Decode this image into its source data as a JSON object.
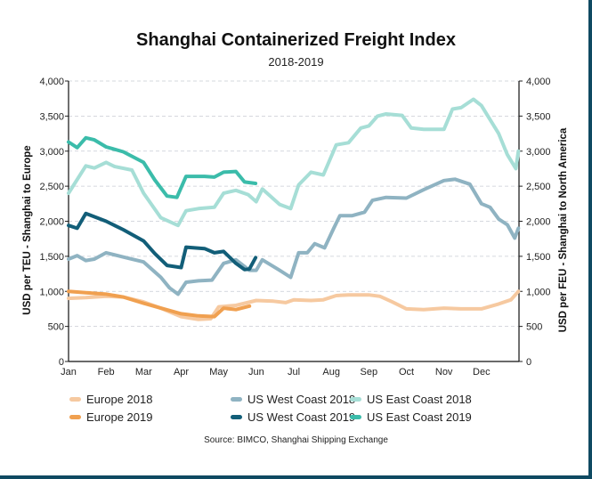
{
  "chart_data": {
    "type": "line",
    "title": "Shanghai Containerized Freight Index",
    "subtitle": "2018-2019",
    "ylabel_left": "USD per TEU - Shanghai to Europe",
    "ylabel_right": "USD per FEU - Shanghai to North America",
    "ylim": [
      0,
      4000
    ],
    "yticks_left": [
      "0",
      "500",
      "1,000",
      "1,500",
      "2,000",
      "2,500",
      "3,000",
      "3,500",
      "4,000"
    ],
    "yticks_right": [
      "0",
      "500",
      "1,000",
      "1,500",
      "2,000",
      "2,500",
      "3,000",
      "3,500",
      "4,000"
    ],
    "xticks": [
      "Jan",
      "Feb",
      "Mar",
      "Apr",
      "May",
      "Jun",
      "Jul",
      "Aug",
      "Sep",
      "Oct",
      "Nov",
      "Dec"
    ],
    "grid": "horizontal dashed",
    "legend_placement": "bottom",
    "source": "Source: BIMCO, Shanghai Shipping Exchange",
    "series": [
      {
        "name": "Europe 2018",
        "color": "#f6c9a0",
        "points": [
          [
            "01-01",
            900
          ],
          [
            "01-15",
            910
          ],
          [
            "02-01",
            930
          ],
          [
            "02-15",
            920
          ],
          [
            "03-01",
            850
          ],
          [
            "03-15",
            760
          ],
          [
            "04-01",
            640
          ],
          [
            "04-15",
            600
          ],
          [
            "04-25",
            610
          ],
          [
            "05-01",
            780
          ],
          [
            "05-15",
            800
          ],
          [
            "06-01",
            870
          ],
          [
            "06-15",
            860
          ],
          [
            "06-25",
            840
          ],
          [
            "07-01",
            880
          ],
          [
            "07-15",
            870
          ],
          [
            "07-25",
            880
          ],
          [
            "08-05",
            940
          ],
          [
            "08-15",
            950
          ],
          [
            "09-01",
            950
          ],
          [
            "09-10",
            930
          ],
          [
            "09-20",
            850
          ],
          [
            "10-01",
            750
          ],
          [
            "10-15",
            740
          ],
          [
            "11-01",
            760
          ],
          [
            "11-15",
            750
          ],
          [
            "12-01",
            750
          ],
          [
            "12-15",
            820
          ],
          [
            "12-25",
            880
          ],
          [
            "12-31",
            1000
          ]
        ]
      },
      {
        "name": "Europe 2019",
        "color": "#f0a050",
        "points": [
          [
            "01-01",
            1000
          ],
          [
            "01-15",
            980
          ],
          [
            "02-01",
            960
          ],
          [
            "02-15",
            920
          ],
          [
            "03-01",
            830
          ],
          [
            "03-15",
            760
          ],
          [
            "04-01",
            680
          ],
          [
            "04-15",
            650
          ],
          [
            "04-28",
            640
          ],
          [
            "05-05",
            760
          ],
          [
            "05-15",
            740
          ],
          [
            "05-26",
            790
          ]
        ]
      },
      {
        "name": "US West Coast 2018",
        "color": "#8fb3c2",
        "points": [
          [
            "01-01",
            1460
          ],
          [
            "01-08",
            1510
          ],
          [
            "01-15",
            1440
          ],
          [
            "01-22",
            1460
          ],
          [
            "02-01",
            1550
          ],
          [
            "02-15",
            1490
          ],
          [
            "03-01",
            1420
          ],
          [
            "03-15",
            1200
          ],
          [
            "03-22",
            1050
          ],
          [
            "03-29",
            960
          ],
          [
            "04-05",
            1130
          ],
          [
            "04-15",
            1150
          ],
          [
            "04-26",
            1160
          ],
          [
            "05-05",
            1400
          ],
          [
            "05-15",
            1450
          ],
          [
            "05-26",
            1300
          ],
          [
            "06-01",
            1300
          ],
          [
            "06-06",
            1450
          ],
          [
            "06-20",
            1300
          ],
          [
            "06-29",
            1200
          ],
          [
            "07-05",
            1550
          ],
          [
            "07-12",
            1550
          ],
          [
            "07-18",
            1680
          ],
          [
            "07-26",
            1620
          ],
          [
            "08-03",
            1900
          ],
          [
            "08-08",
            2080
          ],
          [
            "08-18",
            2080
          ],
          [
            "08-28",
            2130
          ],
          [
            "09-04",
            2300
          ],
          [
            "09-15",
            2340
          ],
          [
            "10-01",
            2330
          ],
          [
            "10-15",
            2450
          ],
          [
            "11-01",
            2580
          ],
          [
            "11-10",
            2600
          ],
          [
            "11-22",
            2530
          ],
          [
            "12-01",
            2250
          ],
          [
            "12-08",
            2200
          ],
          [
            "12-15",
            2030
          ],
          [
            "12-22",
            1950
          ],
          [
            "12-28",
            1760
          ],
          [
            "12-31",
            1900
          ]
        ]
      },
      {
        "name": "US West Coast 2019",
        "color": "#125e78",
        "points": [
          [
            "01-01",
            1940
          ],
          [
            "01-08",
            1900
          ],
          [
            "01-15",
            2110
          ],
          [
            "02-01",
            2000
          ],
          [
            "02-15",
            1880
          ],
          [
            "03-01",
            1720
          ],
          [
            "03-10",
            1540
          ],
          [
            "03-20",
            1370
          ],
          [
            "04-01",
            1340
          ],
          [
            "04-05",
            1630
          ],
          [
            "04-20",
            1610
          ],
          [
            "04-28",
            1550
          ],
          [
            "05-05",
            1570
          ],
          [
            "05-15",
            1400
          ],
          [
            "05-22",
            1310
          ],
          [
            "05-26",
            1320
          ],
          [
            "05-31",
            1480
          ]
        ]
      },
      {
        "name": "US East Coast 2018",
        "color": "#a6ded6",
        "points": [
          [
            "01-01",
            2400
          ],
          [
            "01-15",
            2790
          ],
          [
            "01-22",
            2760
          ],
          [
            "02-01",
            2840
          ],
          [
            "02-08",
            2780
          ],
          [
            "02-22",
            2730
          ],
          [
            "03-01",
            2400
          ],
          [
            "03-15",
            2050
          ],
          [
            "03-29",
            1940
          ],
          [
            "04-05",
            2150
          ],
          [
            "04-15",
            2180
          ],
          [
            "04-28",
            2200
          ],
          [
            "05-05",
            2400
          ],
          [
            "05-15",
            2440
          ],
          [
            "05-25",
            2380
          ],
          [
            "06-01",
            2280
          ],
          [
            "06-06",
            2460
          ],
          [
            "06-20",
            2240
          ],
          [
            "06-29",
            2180
          ],
          [
            "07-05",
            2520
          ],
          [
            "07-15",
            2700
          ],
          [
            "07-25",
            2660
          ],
          [
            "08-05",
            3090
          ],
          [
            "08-15",
            3120
          ],
          [
            "08-25",
            3330
          ],
          [
            "09-01",
            3360
          ],
          [
            "09-08",
            3500
          ],
          [
            "09-15",
            3530
          ],
          [
            "09-28",
            3510
          ],
          [
            "10-05",
            3330
          ],
          [
            "10-15",
            3310
          ],
          [
            "11-01",
            3310
          ],
          [
            "11-08",
            3600
          ],
          [
            "11-15",
            3620
          ],
          [
            "11-25",
            3740
          ],
          [
            "12-01",
            3650
          ],
          [
            "12-15",
            3250
          ],
          [
            "12-22",
            2950
          ],
          [
            "12-29",
            2750
          ],
          [
            "12-31",
            3000
          ]
        ]
      },
      {
        "name": "US East Coast 2019",
        "color": "#3bbcaa",
        "points": [
          [
            "01-01",
            3130
          ],
          [
            "01-08",
            3050
          ],
          [
            "01-15",
            3190
          ],
          [
            "01-22",
            3160
          ],
          [
            "02-01",
            3060
          ],
          [
            "02-15",
            2990
          ],
          [
            "03-01",
            2840
          ],
          [
            "03-10",
            2590
          ],
          [
            "03-20",
            2360
          ],
          [
            "03-28",
            2340
          ],
          [
            "04-05",
            2640
          ],
          [
            "04-20",
            2640
          ],
          [
            "04-28",
            2630
          ],
          [
            "05-05",
            2700
          ],
          [
            "05-15",
            2710
          ],
          [
            "05-22",
            2560
          ],
          [
            "05-31",
            2540
          ]
        ]
      }
    ]
  }
}
